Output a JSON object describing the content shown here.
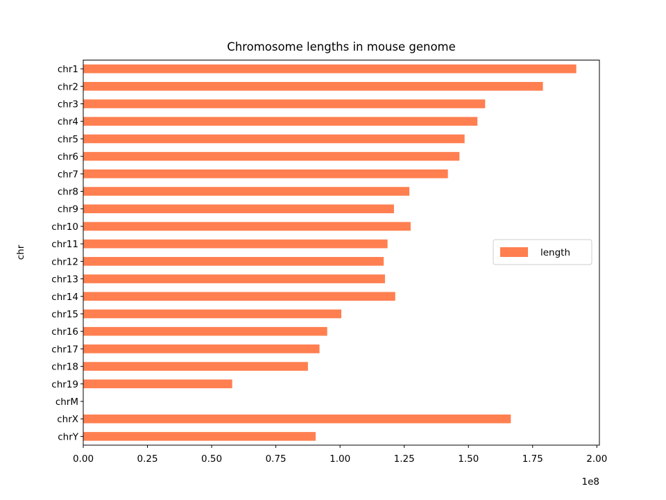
{
  "chart_data": {
    "type": "bar",
    "orientation": "horizontal",
    "title": "Chromosome lengths in mouse genome",
    "xlabel": "",
    "ylabel": "chr",
    "offset_label": "1e8",
    "x_ticks": [
      "0.00",
      "0.25",
      "0.50",
      "0.75",
      "1.00",
      "1.25",
      "1.50",
      "1.75",
      "2.00"
    ],
    "x_tick_values": [
      0,
      0.25,
      0.5,
      0.75,
      1.0,
      1.25,
      1.5,
      1.75,
      2.0
    ],
    "xlim": [
      0,
      2.01
    ],
    "categories": [
      "chr1",
      "chr2",
      "chr3",
      "chr4",
      "chr5",
      "chr6",
      "chr7",
      "chr8",
      "chr9",
      "chr10",
      "chr11",
      "chr12",
      "chr13",
      "chr14",
      "chr15",
      "chr16",
      "chr17",
      "chr18",
      "chr19",
      "chrM",
      "chrX",
      "chrY"
    ],
    "series": [
      {
        "name": "length",
        "color": "#ff7f50",
        "values": [
          1.92,
          1.79,
          1.565,
          1.535,
          1.485,
          1.465,
          1.42,
          1.27,
          1.21,
          1.275,
          1.185,
          1.17,
          1.175,
          1.215,
          1.005,
          0.95,
          0.92,
          0.875,
          0.58,
          0.0002,
          1.665,
          0.905
        ]
      }
    ],
    "legend_position": "center-right",
    "grid": false
  }
}
